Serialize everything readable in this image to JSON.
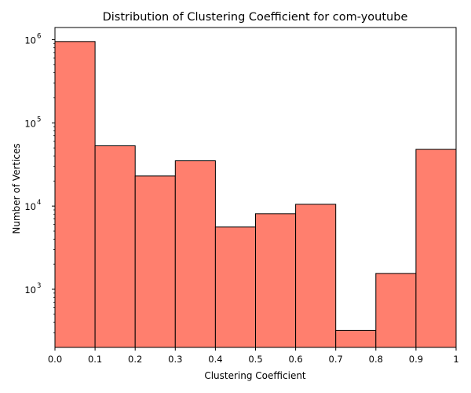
{
  "chart_data": {
    "type": "bar",
    "title": "Distribution of Clustering Coefficient for com-youtube",
    "xlabel": "Clustering Coefficient",
    "ylabel": "Number of Vertices",
    "yscale": "log",
    "xlim": [
      0,
      1
    ],
    "ylim": [
      200,
      1400000
    ],
    "grid": false,
    "bar_color": "#FF7F6E",
    "edge_color": "#000000",
    "bins": [
      {
        "x0": 0.0,
        "x1": 0.1,
        "value": 950000
      },
      {
        "x0": 0.1,
        "x1": 0.2,
        "value": 53000
      },
      {
        "x0": 0.2,
        "x1": 0.3,
        "value": 23000
      },
      {
        "x0": 0.3,
        "x1": 0.4,
        "value": 35000
      },
      {
        "x0": 0.4,
        "x1": 0.5,
        "value": 5600
      },
      {
        "x0": 0.5,
        "x1": 0.6,
        "value": 8100
      },
      {
        "x0": 0.6,
        "x1": 0.7,
        "value": 10500
      },
      {
        "x0": 0.7,
        "x1": 0.8,
        "value": 320
      },
      {
        "x0": 0.8,
        "x1": 0.9,
        "value": 1550
      },
      {
        "x0": 0.9,
        "x1": 1.0,
        "value": 48000
      }
    ],
    "x_ticks": [
      {
        "value": 0.0,
        "label": "0.0"
      },
      {
        "value": 0.1,
        "label": "0.1"
      },
      {
        "value": 0.2,
        "label": "0.2"
      },
      {
        "value": 0.3,
        "label": "0.3"
      },
      {
        "value": 0.4,
        "label": "0.4"
      },
      {
        "value": 0.5,
        "label": "0.5"
      },
      {
        "value": 0.6,
        "label": "0.6"
      },
      {
        "value": 0.7,
        "label": "0.7"
      },
      {
        "value": 0.8,
        "label": "0.8"
      },
      {
        "value": 0.9,
        "label": "0.9"
      },
      {
        "value": 1.0,
        "label": "1"
      }
    ],
    "y_ticks": [
      {
        "value": 1000,
        "base": "10",
        "exp": "3"
      },
      {
        "value": 10000,
        "base": "10",
        "exp": "4"
      },
      {
        "value": 100000,
        "base": "10",
        "exp": "5"
      },
      {
        "value": 1000000,
        "base": "10",
        "exp": "6"
      }
    ]
  }
}
